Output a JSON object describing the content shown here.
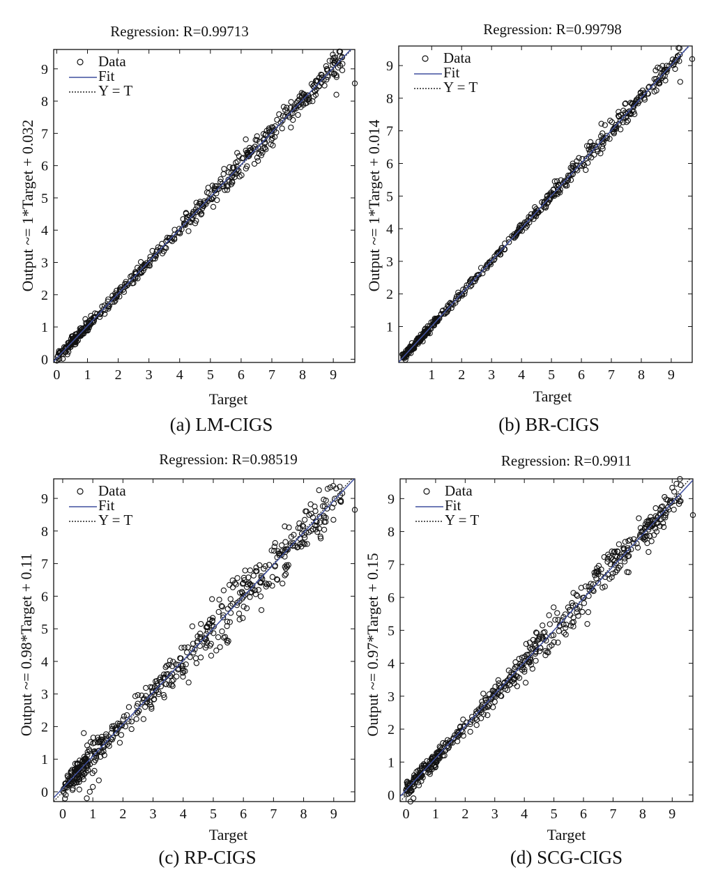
{
  "chart_data": [
    {
      "type": "scatter",
      "panel_caption": "(a) LM-CIGS",
      "title": "Regression: R=0.99713",
      "xlabel": "Target",
      "ylabel": "Output ~= 1*Target + 0.032",
      "xlim": [
        -0.1,
        9.7
      ],
      "ylim": [
        -0.1,
        9.6
      ],
      "xticks": [
        0,
        1,
        2,
        3,
        4,
        5,
        6,
        7,
        8,
        9
      ],
      "yticks": [
        0,
        1,
        2,
        3,
        4,
        5,
        6,
        7,
        8,
        9
      ],
      "fit": {
        "slope": 1.0,
        "intercept": 0.032
      },
      "noise_profile": [
        [
          0,
          0.12
        ],
        [
          3,
          0.15
        ],
        [
          4.5,
          0.25
        ],
        [
          6,
          0.3
        ],
        [
          7,
          0.35
        ],
        [
          8,
          0.25
        ],
        [
          9.5,
          0.3
        ]
      ],
      "outliers": [
        [
          9.7,
          8.55
        ],
        [
          9.1,
          8.2
        ]
      ],
      "legend": [
        "Data",
        "Fit",
        "Y = T"
      ],
      "legend_position": "top-left",
      "n_points": 520,
      "seed": 11
    },
    {
      "type": "scatter",
      "panel_caption": "(b) BR-CIGS",
      "title": "Regression: R=0.99798",
      "xlabel": "Target",
      "ylabel": "Output ~= 1*Target + 0.014",
      "xlim": [
        -0.1,
        9.7
      ],
      "ylim": [
        -0.1,
        9.6
      ],
      "xticks": [
        1,
        2,
        3,
        4,
        5,
        6,
        7,
        8,
        9
      ],
      "yticks": [
        1,
        2,
        3,
        4,
        5,
        6,
        7,
        8,
        9
      ],
      "fit": {
        "slope": 1.0,
        "intercept": 0.014
      },
      "noise_profile": [
        [
          0,
          0.08
        ],
        [
          4,
          0.1
        ],
        [
          5.5,
          0.15
        ],
        [
          6.5,
          0.25
        ],
        [
          8,
          0.2
        ],
        [
          9.5,
          0.25
        ]
      ],
      "outliers": [
        [
          9.7,
          9.2
        ],
        [
          9.3,
          8.5
        ]
      ],
      "legend": [
        "Data",
        "Fit",
        "Y = T"
      ],
      "legend_position": "top-left",
      "n_points": 520,
      "seed": 23
    },
    {
      "type": "scatter",
      "panel_caption": "(c) RP-CIGS",
      "title": "Regression: R=0.98519",
      "xlabel": "Target",
      "ylabel": "Output ~= 0.98*Target + 0.11",
      "xlim": [
        -0.3,
        9.7
      ],
      "ylim": [
        -0.3,
        9.6
      ],
      "xticks": [
        0,
        1,
        2,
        3,
        4,
        5,
        6,
        7,
        8,
        9
      ],
      "yticks": [
        0,
        1,
        2,
        3,
        4,
        5,
        6,
        7,
        8,
        9
      ],
      "fit": {
        "slope": 0.98,
        "intercept": 0.11
      },
      "noise_profile": [
        [
          0,
          0.2
        ],
        [
          1,
          0.35
        ],
        [
          3,
          0.3
        ],
        [
          4.5,
          0.5
        ],
        [
          6,
          0.6
        ],
        [
          7,
          0.6
        ],
        [
          8,
          0.5
        ],
        [
          9.5,
          0.5
        ]
      ],
      "outliers": [
        [
          9.7,
          8.65
        ],
        [
          0.8,
          -0.2
        ],
        [
          0.9,
          0.0
        ],
        [
          1.0,
          0.15
        ],
        [
          1.2,
          0.35
        ],
        [
          0.7,
          1.8
        ]
      ],
      "legend": [
        "Data",
        "Fit",
        "Y = T"
      ],
      "legend_position": "top-left",
      "n_points": 520,
      "seed": 37
    },
    {
      "type": "scatter",
      "panel_caption": "(d) SCG-CIGS",
      "title": "Regression: R=0.9911",
      "xlabel": "Target",
      "ylabel": "Output ~= 0.97*Target + 0.15",
      "xlim": [
        -0.2,
        9.7
      ],
      "ylim": [
        -0.2,
        9.6
      ],
      "xticks": [
        0,
        1,
        2,
        3,
        4,
        5,
        6,
        7,
        8,
        9
      ],
      "yticks": [
        0,
        1,
        2,
        3,
        4,
        5,
        6,
        7,
        8,
        9
      ],
      "fit": {
        "slope": 0.97,
        "intercept": 0.15
      },
      "noise_profile": [
        [
          0,
          0.15
        ],
        [
          2,
          0.2
        ],
        [
          3.5,
          0.25
        ],
        [
          4.5,
          0.45
        ],
        [
          5.5,
          0.5
        ],
        [
          6.5,
          0.55
        ],
        [
          8,
          0.35
        ],
        [
          9.5,
          0.3
        ]
      ],
      "outliers": [
        [
          9.7,
          8.5
        ],
        [
          0.15,
          -0.2
        ],
        [
          0.25,
          -0.1
        ]
      ],
      "legend": [
        "Data",
        "Fit",
        "Y = T"
      ],
      "legend_position": "top-left",
      "n_points": 520,
      "seed": 51
    }
  ],
  "colors": {
    "fit_line": "#3f4f9e",
    "identity_line": "#222222",
    "markers": "#111111",
    "axes": "#111111"
  }
}
